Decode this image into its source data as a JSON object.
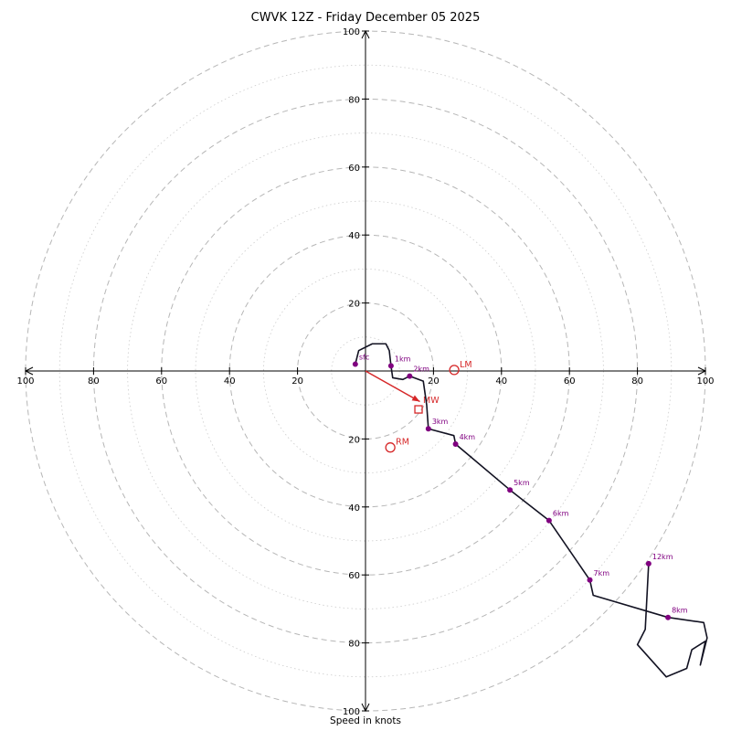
{
  "title": "CWVK 12Z - Friday December 05 2025",
  "xlabel": "Speed in knots",
  "chart_data": {
    "type": "line",
    "subtype": "hodograph-polar",
    "units": "knots",
    "title": "CWVK 12Z - Friday December 05 2025",
    "radial_label": "Speed in knots",
    "rlim": [
      0,
      100
    ],
    "axis_ticks": [
      20,
      40,
      60,
      80,
      100
    ],
    "rings_dashed": [
      20,
      40,
      60,
      80,
      100
    ],
    "rings_dotted": [
      10,
      30,
      50,
      70,
      90
    ],
    "colors": {
      "trace": "#121222",
      "heights": "#800080",
      "storm": "#d62728",
      "grid_dashed": "#b6b6b6",
      "grid_dotted": "#cccccc",
      "axis": "#000000"
    },
    "trace": [
      {
        "u": -3.0,
        "v": 2.0,
        "label": "sfc"
      },
      {
        "u": -2.0,
        "v": 6.0
      },
      {
        "u": 2.0,
        "v": 8.0
      },
      {
        "u": 6.0,
        "v": 8.0
      },
      {
        "u": 7.0,
        "v": 6.0
      },
      {
        "u": 7.5,
        "v": 1.5,
        "label": "1km"
      },
      {
        "u": 8.0,
        "v": -2.0
      },
      {
        "u": 11.0,
        "v": -2.5
      },
      {
        "u": 13.0,
        "v": -1.5,
        "label": "2km"
      },
      {
        "u": 17.0,
        "v": -3.0
      },
      {
        "u": 18.0,
        "v": -10.0
      },
      {
        "u": 18.5,
        "v": -17.0,
        "label": "3km"
      },
      {
        "u": 26.0,
        "v": -19.0
      },
      {
        "u": 26.5,
        "v": -21.5,
        "label": "4km"
      },
      {
        "u": 42.5,
        "v": -35.0,
        "label": "5km"
      },
      {
        "u": 54.0,
        "v": -44.0,
        "label": "6km"
      },
      {
        "u": 66.0,
        "v": -61.5,
        "label": "7km"
      },
      {
        "u": 67.0,
        "v": -66.0
      },
      {
        "u": 89.0,
        "v": -72.5,
        "label": "8km"
      },
      {
        "u": 99.5,
        "v": -74.0
      },
      {
        "u": 100.5,
        "v": -78.5
      },
      {
        "u": 98.5,
        "v": -86.5
      },
      {
        "u": 100.0,
        "v": -79.5
      },
      {
        "u": 96.0,
        "v": -82.0
      },
      {
        "u": 94.5,
        "v": -87.5
      },
      {
        "u": 88.5,
        "v": -90.0
      },
      {
        "u": 80.0,
        "v": -80.5
      },
      {
        "u": 82.3,
        "v": -76.0
      },
      {
        "u": 83.3,
        "v": -56.7,
        "label": "12km"
      }
    ],
    "storm_markers": {
      "arrow_from": {
        "u": 0,
        "v": 0
      },
      "arrow_to": {
        "u": 16.0,
        "v": -9.0
      },
      "mean_wind": {
        "label": "MW",
        "u": 15.6,
        "v": -11.3,
        "marker": "square"
      },
      "left_mover": {
        "label": "LM",
        "u": 26.1,
        "v": 0.3,
        "marker": "circle"
      },
      "right_mover": {
        "label": "RM",
        "u": 7.3,
        "v": -22.5,
        "marker": "circle"
      }
    }
  }
}
